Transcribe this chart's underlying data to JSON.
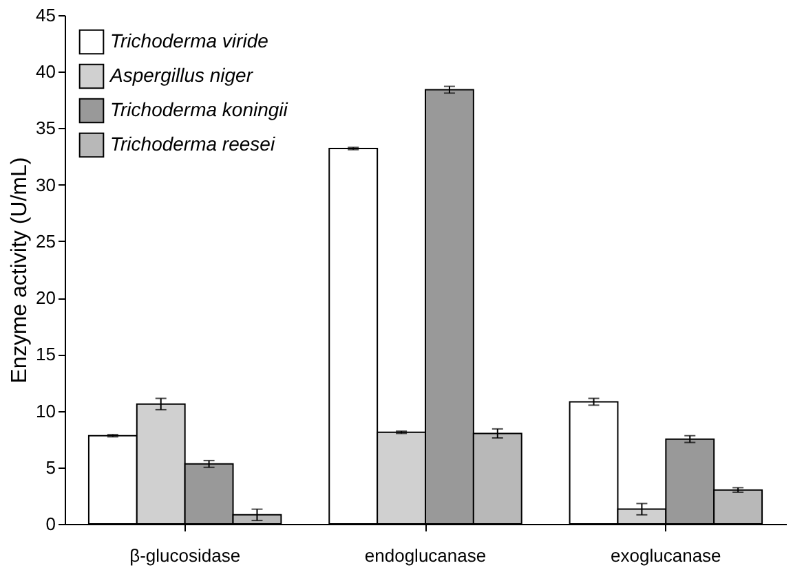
{
  "chart_data": {
    "type": "bar",
    "ylabel": "Enzyme activity (U/mL)",
    "categories": [
      "β-glucosidase",
      "endoglucanase",
      "exoglucanase"
    ],
    "series": [
      {
        "name": "Trichoderma viride",
        "color": "#ffffff",
        "values": [
          7.8,
          33.2,
          10.8
        ],
        "errors": [
          0.1,
          0.1,
          0.3
        ]
      },
      {
        "name": "Aspergillus niger",
        "color": "#d0d0d0",
        "values": [
          10.6,
          8.1,
          1.3
        ],
        "errors": [
          0.5,
          0.1,
          0.5
        ]
      },
      {
        "name": "Trichoderma koningii",
        "color": "#999999",
        "values": [
          5.3,
          38.4,
          7.5
        ],
        "errors": [
          0.3,
          0.3,
          0.3
        ]
      },
      {
        "name": "Trichoderma reesei",
        "color": "#b8b8b8",
        "values": [
          0.8,
          8.0,
          3.0
        ],
        "errors": [
          0.5,
          0.4,
          0.2
        ]
      }
    ],
    "ylim": [
      0,
      45
    ],
    "yticks": [
      0,
      5,
      10,
      15,
      20,
      25,
      30,
      35,
      40,
      45
    ],
    "grid": false,
    "legend": "top left"
  }
}
